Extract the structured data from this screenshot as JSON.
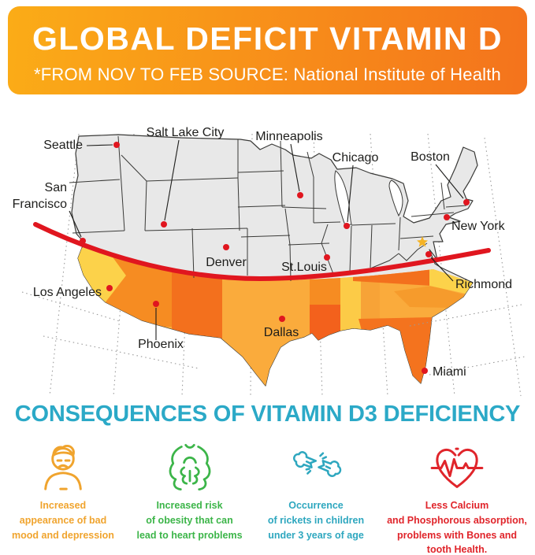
{
  "header": {
    "title": "GLOBAL DEFICIT VITAMIN D",
    "subtitle": "*FROM NOV TO FEB SOURCE: National Institute of Health",
    "bg_left": "#FBAC17",
    "bg_right": "#F4731C"
  },
  "map": {
    "latitude_line_color": "#E0161F",
    "dot_color": "#E0161F",
    "star_color": "#F5B325",
    "land_color": "#E8E8E8",
    "state_shades": [
      "#FCD24A",
      "#FAAB3C",
      "#F68C22",
      "#F3701D"
    ],
    "cities": [
      {
        "name": "Seattle",
        "dot": [
          148,
          49
        ],
        "label": [
          105,
          54
        ],
        "anchor": "end",
        "line": [
          110,
          50,
          143,
          49
        ]
      },
      {
        "name": "San\nFrancisco",
        "dot": [
          105,
          171
        ],
        "label": [
          85,
          108
        ],
        "anchor": "end",
        "line": [
          88,
          133,
          103,
          166
        ]
      },
      {
        "name": "Salt Lake City",
        "dot": [
          208,
          150
        ],
        "label": [
          235,
          38
        ],
        "anchor": "middle",
        "line": [
          227,
          43,
          209,
          145
        ]
      },
      {
        "name": "Denver",
        "dot": [
          287,
          179
        ],
        "label": [
          287,
          203
        ],
        "anchor": "middle",
        "line": null
      },
      {
        "name": "Minneapolis",
        "dot": [
          381,
          113
        ],
        "label": [
          367,
          43
        ],
        "anchor": "middle",
        "line": [
          369,
          48,
          380,
          108
        ]
      },
      {
        "name": "Chicago",
        "dot": [
          440,
          152
        ],
        "label": [
          451,
          70
        ],
        "anchor": "middle",
        "line": [
          448,
          75,
          441,
          147
        ]
      },
      {
        "name": "St.Louis",
        "dot": [
          415,
          192
        ],
        "label": [
          386,
          209
        ],
        "anchor": "middle",
        "line": null
      },
      {
        "name": "Boston",
        "dot": [
          592,
          122
        ],
        "label": [
          546,
          69
        ],
        "anchor": "middle",
        "line": [
          553,
          74,
          588,
          117
        ]
      },
      {
        "name": "New York",
        "dot": [
          567,
          141
        ],
        "label": [
          573,
          157
        ],
        "anchor": "start",
        "line": null
      },
      {
        "name": "Richmond",
        "dot": [
          544,
          188
        ],
        "label": [
          578,
          231
        ],
        "anchor": "start",
        "line": [
          547,
          192,
          575,
          222
        ]
      },
      {
        "name": "Los Angeles",
        "dot": [
          139,
          231
        ],
        "label": [
          129,
          241
        ],
        "anchor": "end",
        "line": null
      },
      {
        "name": "Phoenix",
        "dot": [
          198,
          251
        ],
        "label": [
          204,
          307
        ],
        "anchor": "middle",
        "line": [
          198,
          256,
          198,
          297
        ]
      },
      {
        "name": "Dallas",
        "dot": [
          358,
          270
        ],
        "label": [
          357,
          292
        ],
        "anchor": "middle",
        "line": null
      },
      {
        "name": "Miami",
        "dot": [
          539,
          336
        ],
        "label": [
          549,
          342
        ],
        "anchor": "start",
        "line": null
      }
    ]
  },
  "consequences": {
    "heading": "CONSEQUENCES OF VITAMIN D3 DEFICIENCY",
    "heading_color": "#2BA9C7",
    "items": [
      {
        "icon": "sad-person-icon",
        "color": "#F0A42E",
        "text": "Increased\nappearance of bad\nmood and depression"
      },
      {
        "icon": "obese-body-icon",
        "color": "#3CB549",
        "text": "Increased risk\nof obesity that can\nlead to heart problems"
      },
      {
        "icon": "broken-bone-icon",
        "color": "#2EA7BF",
        "text": "Occurrence\nof rickets in children\nunder 3 years of age"
      },
      {
        "icon": "heart-pulse-icon",
        "color": "#E0252B",
        "text": "Less Calcium\nand Phosphorous absorption,\nproblems with Bones and\ntooth Health."
      }
    ]
  }
}
